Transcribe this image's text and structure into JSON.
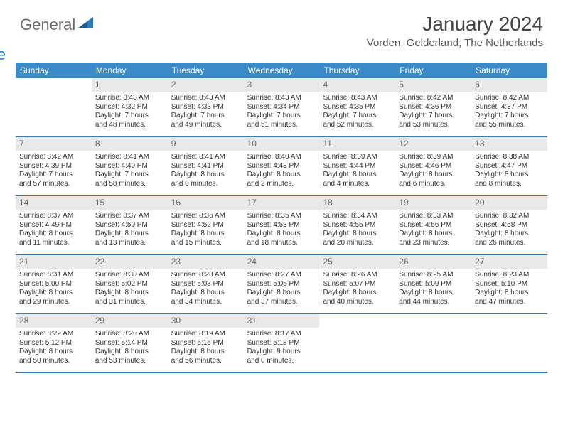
{
  "logo": {
    "word1": "General",
    "word2": "Blue"
  },
  "title": "January 2024",
  "location": "Vorden, Gelderland, The Netherlands",
  "colors": {
    "header_bg": "#3b8bc9",
    "row_border": "#3b7bb0",
    "daynum_bg": "#e7e9eb",
    "logo_gray": "#6b6b6b",
    "logo_blue": "#2b7bbf"
  },
  "weekdays": [
    "Sunday",
    "Monday",
    "Tuesday",
    "Wednesday",
    "Thursday",
    "Friday",
    "Saturday"
  ],
  "weeks": [
    [
      {
        "n": "",
        "sunrise": "",
        "sunset": "",
        "daylight1": "",
        "daylight2": ""
      },
      {
        "n": "1",
        "sunrise": "Sunrise: 8:43 AM",
        "sunset": "Sunset: 4:32 PM",
        "daylight1": "Daylight: 7 hours",
        "daylight2": "and 48 minutes."
      },
      {
        "n": "2",
        "sunrise": "Sunrise: 8:43 AM",
        "sunset": "Sunset: 4:33 PM",
        "daylight1": "Daylight: 7 hours",
        "daylight2": "and 49 minutes."
      },
      {
        "n": "3",
        "sunrise": "Sunrise: 8:43 AM",
        "sunset": "Sunset: 4:34 PM",
        "daylight1": "Daylight: 7 hours",
        "daylight2": "and 51 minutes."
      },
      {
        "n": "4",
        "sunrise": "Sunrise: 8:43 AM",
        "sunset": "Sunset: 4:35 PM",
        "daylight1": "Daylight: 7 hours",
        "daylight2": "and 52 minutes."
      },
      {
        "n": "5",
        "sunrise": "Sunrise: 8:42 AM",
        "sunset": "Sunset: 4:36 PM",
        "daylight1": "Daylight: 7 hours",
        "daylight2": "and 53 minutes."
      },
      {
        "n": "6",
        "sunrise": "Sunrise: 8:42 AM",
        "sunset": "Sunset: 4:37 PM",
        "daylight1": "Daylight: 7 hours",
        "daylight2": "and 55 minutes."
      }
    ],
    [
      {
        "n": "7",
        "sunrise": "Sunrise: 8:42 AM",
        "sunset": "Sunset: 4:39 PM",
        "daylight1": "Daylight: 7 hours",
        "daylight2": "and 57 minutes."
      },
      {
        "n": "8",
        "sunrise": "Sunrise: 8:41 AM",
        "sunset": "Sunset: 4:40 PM",
        "daylight1": "Daylight: 7 hours",
        "daylight2": "and 58 minutes."
      },
      {
        "n": "9",
        "sunrise": "Sunrise: 8:41 AM",
        "sunset": "Sunset: 4:41 PM",
        "daylight1": "Daylight: 8 hours",
        "daylight2": "and 0 minutes."
      },
      {
        "n": "10",
        "sunrise": "Sunrise: 8:40 AM",
        "sunset": "Sunset: 4:43 PM",
        "daylight1": "Daylight: 8 hours",
        "daylight2": "and 2 minutes."
      },
      {
        "n": "11",
        "sunrise": "Sunrise: 8:39 AM",
        "sunset": "Sunset: 4:44 PM",
        "daylight1": "Daylight: 8 hours",
        "daylight2": "and 4 minutes."
      },
      {
        "n": "12",
        "sunrise": "Sunrise: 8:39 AM",
        "sunset": "Sunset: 4:46 PM",
        "daylight1": "Daylight: 8 hours",
        "daylight2": "and 6 minutes."
      },
      {
        "n": "13",
        "sunrise": "Sunrise: 8:38 AM",
        "sunset": "Sunset: 4:47 PM",
        "daylight1": "Daylight: 8 hours",
        "daylight2": "and 8 minutes."
      }
    ],
    [
      {
        "n": "14",
        "sunrise": "Sunrise: 8:37 AM",
        "sunset": "Sunset: 4:49 PM",
        "daylight1": "Daylight: 8 hours",
        "daylight2": "and 11 minutes."
      },
      {
        "n": "15",
        "sunrise": "Sunrise: 8:37 AM",
        "sunset": "Sunset: 4:50 PM",
        "daylight1": "Daylight: 8 hours",
        "daylight2": "and 13 minutes."
      },
      {
        "n": "16",
        "sunrise": "Sunrise: 8:36 AM",
        "sunset": "Sunset: 4:52 PM",
        "daylight1": "Daylight: 8 hours",
        "daylight2": "and 15 minutes."
      },
      {
        "n": "17",
        "sunrise": "Sunrise: 8:35 AM",
        "sunset": "Sunset: 4:53 PM",
        "daylight1": "Daylight: 8 hours",
        "daylight2": "and 18 minutes."
      },
      {
        "n": "18",
        "sunrise": "Sunrise: 8:34 AM",
        "sunset": "Sunset: 4:55 PM",
        "daylight1": "Daylight: 8 hours",
        "daylight2": "and 20 minutes."
      },
      {
        "n": "19",
        "sunrise": "Sunrise: 8:33 AM",
        "sunset": "Sunset: 4:56 PM",
        "daylight1": "Daylight: 8 hours",
        "daylight2": "and 23 minutes."
      },
      {
        "n": "20",
        "sunrise": "Sunrise: 8:32 AM",
        "sunset": "Sunset: 4:58 PM",
        "daylight1": "Daylight: 8 hours",
        "daylight2": "and 26 minutes."
      }
    ],
    [
      {
        "n": "21",
        "sunrise": "Sunrise: 8:31 AM",
        "sunset": "Sunset: 5:00 PM",
        "daylight1": "Daylight: 8 hours",
        "daylight2": "and 29 minutes."
      },
      {
        "n": "22",
        "sunrise": "Sunrise: 8:30 AM",
        "sunset": "Sunset: 5:02 PM",
        "daylight1": "Daylight: 8 hours",
        "daylight2": "and 31 minutes."
      },
      {
        "n": "23",
        "sunrise": "Sunrise: 8:28 AM",
        "sunset": "Sunset: 5:03 PM",
        "daylight1": "Daylight: 8 hours",
        "daylight2": "and 34 minutes."
      },
      {
        "n": "24",
        "sunrise": "Sunrise: 8:27 AM",
        "sunset": "Sunset: 5:05 PM",
        "daylight1": "Daylight: 8 hours",
        "daylight2": "and 37 minutes."
      },
      {
        "n": "25",
        "sunrise": "Sunrise: 8:26 AM",
        "sunset": "Sunset: 5:07 PM",
        "daylight1": "Daylight: 8 hours",
        "daylight2": "and 40 minutes."
      },
      {
        "n": "26",
        "sunrise": "Sunrise: 8:25 AM",
        "sunset": "Sunset: 5:09 PM",
        "daylight1": "Daylight: 8 hours",
        "daylight2": "and 44 minutes."
      },
      {
        "n": "27",
        "sunrise": "Sunrise: 8:23 AM",
        "sunset": "Sunset: 5:10 PM",
        "daylight1": "Daylight: 8 hours",
        "daylight2": "and 47 minutes."
      }
    ],
    [
      {
        "n": "28",
        "sunrise": "Sunrise: 8:22 AM",
        "sunset": "Sunset: 5:12 PM",
        "daylight1": "Daylight: 8 hours",
        "daylight2": "and 50 minutes."
      },
      {
        "n": "29",
        "sunrise": "Sunrise: 8:20 AM",
        "sunset": "Sunset: 5:14 PM",
        "daylight1": "Daylight: 8 hours",
        "daylight2": "and 53 minutes."
      },
      {
        "n": "30",
        "sunrise": "Sunrise: 8:19 AM",
        "sunset": "Sunset: 5:16 PM",
        "daylight1": "Daylight: 8 hours",
        "daylight2": "and 56 minutes."
      },
      {
        "n": "31",
        "sunrise": "Sunrise: 8:17 AM",
        "sunset": "Sunset: 5:18 PM",
        "daylight1": "Daylight: 9 hours",
        "daylight2": "and 0 minutes."
      },
      {
        "n": "",
        "sunrise": "",
        "sunset": "",
        "daylight1": "",
        "daylight2": ""
      },
      {
        "n": "",
        "sunrise": "",
        "sunset": "",
        "daylight1": "",
        "daylight2": ""
      },
      {
        "n": "",
        "sunrise": "",
        "sunset": "",
        "daylight1": "",
        "daylight2": ""
      }
    ]
  ]
}
